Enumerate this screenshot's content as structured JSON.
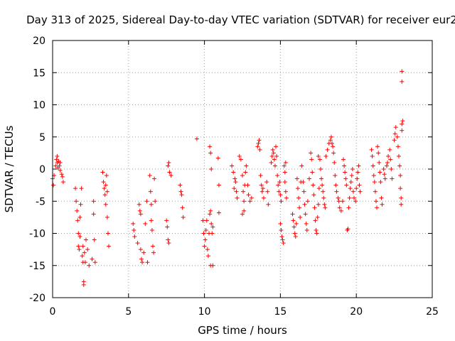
{
  "chart_data": {
    "type": "scatter",
    "title": "Day 313 of 2025, Sidereal Day-to-day VTEC variation (SDTVAR) for receiver eur2",
    "xlabel": "GPS time / hours",
    "ylabel": "SDTVAR / TECUs",
    "xlim": [
      0,
      25
    ],
    "ylim": [
      -20,
      20
    ],
    "xticks": [
      "0",
      "5",
      "10",
      "15",
      "20",
      "25"
    ],
    "yticks": [
      "-20",
      "-15",
      "-10",
      "-5",
      "0",
      "5",
      "10",
      "15",
      "20"
    ],
    "grid": true,
    "marker": "plus",
    "color": "#ff0000",
    "series": [
      {
        "name": "SDTVAR",
        "points": [
          [
            0.0,
            -1.5
          ],
          [
            0.05,
            -2.5
          ],
          [
            0.1,
            -1.0
          ],
          [
            0.2,
            0.5
          ],
          [
            0.25,
            1.5
          ],
          [
            0.3,
            2.0
          ],
          [
            0.3,
            1.0
          ],
          [
            0.35,
            0.2
          ],
          [
            0.4,
            1.2
          ],
          [
            0.45,
            0.5
          ],
          [
            0.5,
            -0.2
          ],
          [
            0.5,
            1.0
          ],
          [
            0.6,
            -0.8
          ],
          [
            0.65,
            -1.2
          ],
          [
            0.7,
            -2.0
          ],
          [
            1.5,
            -3.0
          ],
          [
            1.55,
            -5.0
          ],
          [
            1.6,
            -6.5
          ],
          [
            1.65,
            -8.0
          ],
          [
            1.7,
            -10.0
          ],
          [
            1.7,
            -12.0
          ],
          [
            1.75,
            -12.5
          ],
          [
            1.8,
            -10.5
          ],
          [
            1.8,
            -7.5
          ],
          [
            1.85,
            -5.5
          ],
          [
            1.9,
            -3.0
          ],
          [
            1.95,
            -13.5
          ],
          [
            2.0,
            -12.0
          ],
          [
            2.0,
            -14.5
          ],
          [
            2.05,
            -18.0
          ],
          [
            2.05,
            -17.5
          ],
          [
            2.1,
            -13.0
          ],
          [
            2.15,
            -14.5
          ],
          [
            2.2,
            -11.0
          ],
          [
            2.3,
            -12.5
          ],
          [
            2.4,
            -15.0
          ],
          [
            2.6,
            -14.0
          ],
          [
            2.7,
            -5.0
          ],
          [
            2.7,
            -7.0
          ],
          [
            2.75,
            -11.0
          ],
          [
            2.8,
            -14.5
          ],
          [
            3.3,
            -0.5
          ],
          [
            3.35,
            -2.0
          ],
          [
            3.4,
            -3.0
          ],
          [
            3.45,
            -4.0
          ],
          [
            3.5,
            -2.5
          ],
          [
            3.5,
            -5.5
          ],
          [
            3.55,
            -1.0
          ],
          [
            3.6,
            -3.5
          ],
          [
            3.6,
            -7.5
          ],
          [
            3.65,
            -10.0
          ],
          [
            3.7,
            -12.0
          ],
          [
            5.3,
            -8.5
          ],
          [
            5.35,
            -9.5
          ],
          [
            5.4,
            -10.5
          ],
          [
            5.6,
            -11.5
          ],
          [
            5.7,
            -5.5
          ],
          [
            5.75,
            -6.5
          ],
          [
            5.8,
            -7.0
          ],
          [
            5.8,
            -12.5
          ],
          [
            5.85,
            -14.0
          ],
          [
            5.9,
            -14.5
          ],
          [
            6.0,
            -13.0
          ],
          [
            6.1,
            -8.5
          ],
          [
            6.2,
            -5.0
          ],
          [
            6.25,
            -14.5
          ],
          [
            6.4,
            -1.0
          ],
          [
            6.45,
            -3.5
          ],
          [
            6.5,
            -5.5
          ],
          [
            6.5,
            -8.0
          ],
          [
            6.55,
            -9.5
          ],
          [
            6.6,
            -12.0
          ],
          [
            6.65,
            -13.0
          ],
          [
            6.7,
            -1.5
          ],
          [
            6.75,
            -5.0
          ],
          [
            7.5,
            -8.0
          ],
          [
            7.55,
            -9.0
          ],
          [
            7.6,
            -11.0
          ],
          [
            7.65,
            -11.5
          ],
          [
            7.6,
            0.5
          ],
          [
            7.65,
            1.0
          ],
          [
            7.7,
            -0.5
          ],
          [
            7.8,
            -1.0
          ],
          [
            8.4,
            -2.5
          ],
          [
            8.45,
            -3.5
          ],
          [
            8.5,
            -4.0
          ],
          [
            8.55,
            -6.0
          ],
          [
            8.6,
            -7.5
          ],
          [
            9.5,
            4.7
          ],
          [
            9.9,
            -8.0
          ],
          [
            9.95,
            -10.0
          ],
          [
            10.0,
            -12.0
          ],
          [
            10.05,
            -11.0
          ],
          [
            10.1,
            -9.5
          ],
          [
            10.15,
            -8.0
          ],
          [
            10.2,
            -12.5
          ],
          [
            10.25,
            -13.5
          ],
          [
            10.3,
            -10.0
          ],
          [
            10.35,
            -7.0
          ],
          [
            10.4,
            -6.5
          ],
          [
            10.45,
            -8.5
          ],
          [
            10.5,
            -10.0
          ],
          [
            10.55,
            -9.0
          ],
          [
            10.35,
            3.5
          ],
          [
            10.4,
            2.5
          ],
          [
            10.45,
            0.0
          ],
          [
            10.4,
            -15.0
          ],
          [
            10.55,
            -15.0
          ],
          [
            10.9,
            1.7
          ],
          [
            10.95,
            -2.5
          ],
          [
            10.95,
            -6.8
          ],
          [
            11.8,
            0.5
          ],
          [
            11.9,
            -0.5
          ],
          [
            12.0,
            -1.5
          ],
          [
            12.05,
            -2.0
          ],
          [
            11.95,
            -3.0
          ],
          [
            12.1,
            -3.5
          ],
          [
            12.15,
            -4.5
          ],
          [
            12.3,
            2.0
          ],
          [
            12.4,
            1.5
          ],
          [
            12.5,
            -1.0
          ],
          [
            12.55,
            -3.5
          ],
          [
            12.6,
            -5.0
          ],
          [
            12.6,
            -6.5
          ],
          [
            12.65,
            -2.5
          ],
          [
            12.7,
            -0.5
          ],
          [
            12.75,
            0.5
          ],
          [
            12.5,
            -7.0
          ],
          [
            12.85,
            -2.5
          ],
          [
            12.9,
            -4.0
          ],
          [
            13.0,
            -5.0
          ],
          [
            13.1,
            -4.5
          ],
          [
            13.5,
            3.5
          ],
          [
            13.55,
            4.0
          ],
          [
            13.6,
            4.5
          ],
          [
            13.65,
            3.0
          ],
          [
            13.7,
            -1.0
          ],
          [
            13.75,
            -2.5
          ],
          [
            13.8,
            -3.5
          ],
          [
            13.85,
            -3.0
          ],
          [
            13.9,
            -4.5
          ],
          [
            14.1,
            -2.0
          ],
          [
            14.15,
            -3.5
          ],
          [
            14.2,
            -5.5
          ],
          [
            14.4,
            1.0
          ],
          [
            14.45,
            2.0
          ],
          [
            14.5,
            3.0
          ],
          [
            14.55,
            2.5
          ],
          [
            14.6,
            1.5
          ],
          [
            14.65,
            0.5
          ],
          [
            14.7,
            3.5
          ],
          [
            14.75,
            2.0
          ],
          [
            14.8,
            -1.0
          ],
          [
            14.85,
            -2.5
          ],
          [
            14.9,
            -3.5
          ],
          [
            14.95,
            -2.0
          ],
          [
            15.0,
            -4.0
          ],
          [
            15.05,
            -5.0
          ],
          [
            15.0,
            -8.5
          ],
          [
            15.05,
            -9.5
          ],
          [
            15.1,
            -10.5
          ],
          [
            15.15,
            -11.0
          ],
          [
            15.2,
            -11.5
          ],
          [
            15.25,
            0.5
          ],
          [
            15.3,
            -0.5
          ],
          [
            15.35,
            1.0
          ],
          [
            15.3,
            -2.0
          ],
          [
            15.35,
            -3.5
          ],
          [
            15.4,
            -4.5
          ],
          [
            15.8,
            -7.0
          ],
          [
            15.85,
            -8.0
          ],
          [
            15.9,
            -9.0
          ],
          [
            15.95,
            -10.0
          ],
          [
            16.0,
            -10.5
          ],
          [
            16.05,
            -8.5
          ],
          [
            16.1,
            -1.5
          ],
          [
            16.15,
            -3.0
          ],
          [
            16.2,
            -4.5
          ],
          [
            16.25,
            -6.0
          ],
          [
            16.3,
            -7.5
          ],
          [
            16.35,
            -2.0
          ],
          [
            16.4,
            0.5
          ],
          [
            16.5,
            -2.0
          ],
          [
            16.55,
            -3.5
          ],
          [
            16.6,
            -5.5
          ],
          [
            16.65,
            -7.0
          ],
          [
            16.7,
            -8.5
          ],
          [
            16.75,
            -9.5
          ],
          [
            16.8,
            -5.0
          ],
          [
            16.9,
            -1.5
          ],
          [
            17.0,
            2.5
          ],
          [
            17.05,
            1.5
          ],
          [
            17.1,
            -0.5
          ],
          [
            17.15,
            -2.5
          ],
          [
            17.2,
            -4.0
          ],
          [
            17.25,
            -6.0
          ],
          [
            17.3,
            -8.0
          ],
          [
            17.35,
            -9.5
          ],
          [
            17.4,
            -10.0
          ],
          [
            17.45,
            -7.5
          ],
          [
            17.5,
            -5.5
          ],
          [
            17.55,
            -3.0
          ],
          [
            17.5,
            2.0
          ],
          [
            17.6,
            1.5
          ],
          [
            17.65,
            0.0
          ],
          [
            17.7,
            -1.5
          ],
          [
            17.75,
            -2.5
          ],
          [
            17.8,
            -3.5
          ],
          [
            17.85,
            -4.5
          ],
          [
            17.9,
            -5.5
          ],
          [
            17.95,
            -6.0
          ],
          [
            18.0,
            2.0
          ],
          [
            18.1,
            3.0
          ],
          [
            18.2,
            4.0
          ],
          [
            18.3,
            4.5
          ],
          [
            18.35,
            5.0
          ],
          [
            18.4,
            4.0
          ],
          [
            18.45,
            3.5
          ],
          [
            18.5,
            2.5
          ],
          [
            18.55,
            1.0
          ],
          [
            18.6,
            -1.0
          ],
          [
            18.65,
            -2.5
          ],
          [
            18.7,
            -3.5
          ],
          [
            18.8,
            -4.5
          ],
          [
            18.85,
            -5.0
          ],
          [
            18.9,
            -6.0
          ],
          [
            19.0,
            -6.5
          ],
          [
            19.1,
            -5.0
          ],
          [
            19.15,
            1.5
          ],
          [
            19.2,
            0.5
          ],
          [
            19.25,
            -0.5
          ],
          [
            19.3,
            -1.5
          ],
          [
            19.35,
            -2.5
          ],
          [
            19.4,
            -9.5
          ],
          [
            19.45,
            -9.3
          ],
          [
            19.5,
            -6.0
          ],
          [
            19.55,
            -4.5
          ],
          [
            19.6,
            -3.0
          ],
          [
            19.65,
            -2.0
          ],
          [
            19.7,
            -1.0
          ],
          [
            19.75,
            0.0
          ],
          [
            19.8,
            -3.5
          ],
          [
            19.85,
            -4.5
          ],
          [
            19.95,
            -5.0
          ],
          [
            20.0,
            -3.0
          ],
          [
            20.05,
            -1.5
          ],
          [
            20.1,
            -0.5
          ],
          [
            20.15,
            0.5
          ],
          [
            20.2,
            -2.5
          ],
          [
            20.25,
            -3.5
          ],
          [
            21.0,
            3.0
          ],
          [
            21.05,
            2.0
          ],
          [
            21.1,
            0.5
          ],
          [
            21.15,
            -1.0
          ],
          [
            21.2,
            -2.0
          ],
          [
            21.25,
            -3.5
          ],
          [
            21.3,
            -5.0
          ],
          [
            21.35,
            -6.0
          ],
          [
            21.4,
            3.5
          ],
          [
            21.45,
            2.5
          ],
          [
            21.5,
            1.0
          ],
          [
            21.55,
            -0.5
          ],
          [
            21.6,
            -2.0
          ],
          [
            21.65,
            -4.5
          ],
          [
            21.7,
            -5.5
          ],
          [
            21.8,
            0.0
          ],
          [
            21.85,
            -0.8
          ],
          [
            21.9,
            -1.5
          ],
          [
            22.0,
            0.5
          ],
          [
            22.05,
            1.0
          ],
          [
            22.1,
            2.0
          ],
          [
            22.2,
            3.0
          ],
          [
            22.25,
            1.5
          ],
          [
            22.3,
            0.0
          ],
          [
            22.35,
            -1.5
          ],
          [
            22.5,
            4.5
          ],
          [
            22.55,
            5.5
          ],
          [
            22.6,
            6.5
          ],
          [
            22.7,
            5.0
          ],
          [
            22.75,
            3.5
          ],
          [
            22.8,
            2.0
          ],
          [
            22.85,
            0.5
          ],
          [
            22.9,
            -1.0
          ],
          [
            22.9,
            -3.0
          ],
          [
            22.95,
            -4.5
          ],
          [
            22.95,
            -5.5
          ],
          [
            23.0,
            6.0
          ],
          [
            23.0,
            7.0
          ],
          [
            23.05,
            7.5
          ],
          [
            23.0,
            15.2
          ],
          [
            23.0,
            13.6
          ]
        ]
      }
    ]
  }
}
